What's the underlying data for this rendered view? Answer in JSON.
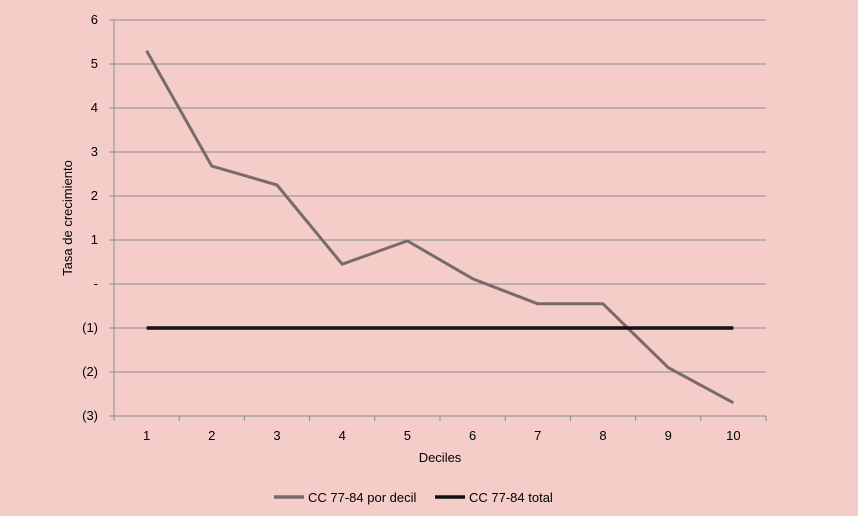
{
  "chart_data": {
    "type": "line",
    "title": "",
    "xlabel": "Deciles",
    "ylabel": "Tasa de crecimiento",
    "categories": [
      "1",
      "2",
      "3",
      "4",
      "5",
      "6",
      "7",
      "8",
      "9",
      "10"
    ],
    "ylim": [
      -3,
      6
    ],
    "y_ticks": [
      {
        "value": 6,
        "label": "6"
      },
      {
        "value": 5,
        "label": "5"
      },
      {
        "value": 4,
        "label": "4"
      },
      {
        "value": 3,
        "label": "3"
      },
      {
        "value": 2,
        "label": "2"
      },
      {
        "value": 1,
        "label": "1"
      },
      {
        "value": 0,
        "label": "-"
      },
      {
        "value": -1,
        "label": "(1)"
      },
      {
        "value": -2,
        "label": "(2)"
      },
      {
        "value": -3,
        "label": "(3)"
      }
    ],
    "grid": true,
    "legend_position": "bottom",
    "series": [
      {
        "name": "CC 77-84 por decil",
        "color": "#7a6b6b",
        "values": [
          5.3,
          2.68,
          2.25,
          0.45,
          0.98,
          0.12,
          -0.45,
          -0.45,
          -1.9,
          -2.7
        ]
      },
      {
        "name": "CC 77-84 total",
        "color": "#111111",
        "values": [
          -1,
          -1,
          -1,
          -1,
          -1,
          -1,
          -1,
          -1,
          -1,
          -1
        ]
      }
    ]
  }
}
